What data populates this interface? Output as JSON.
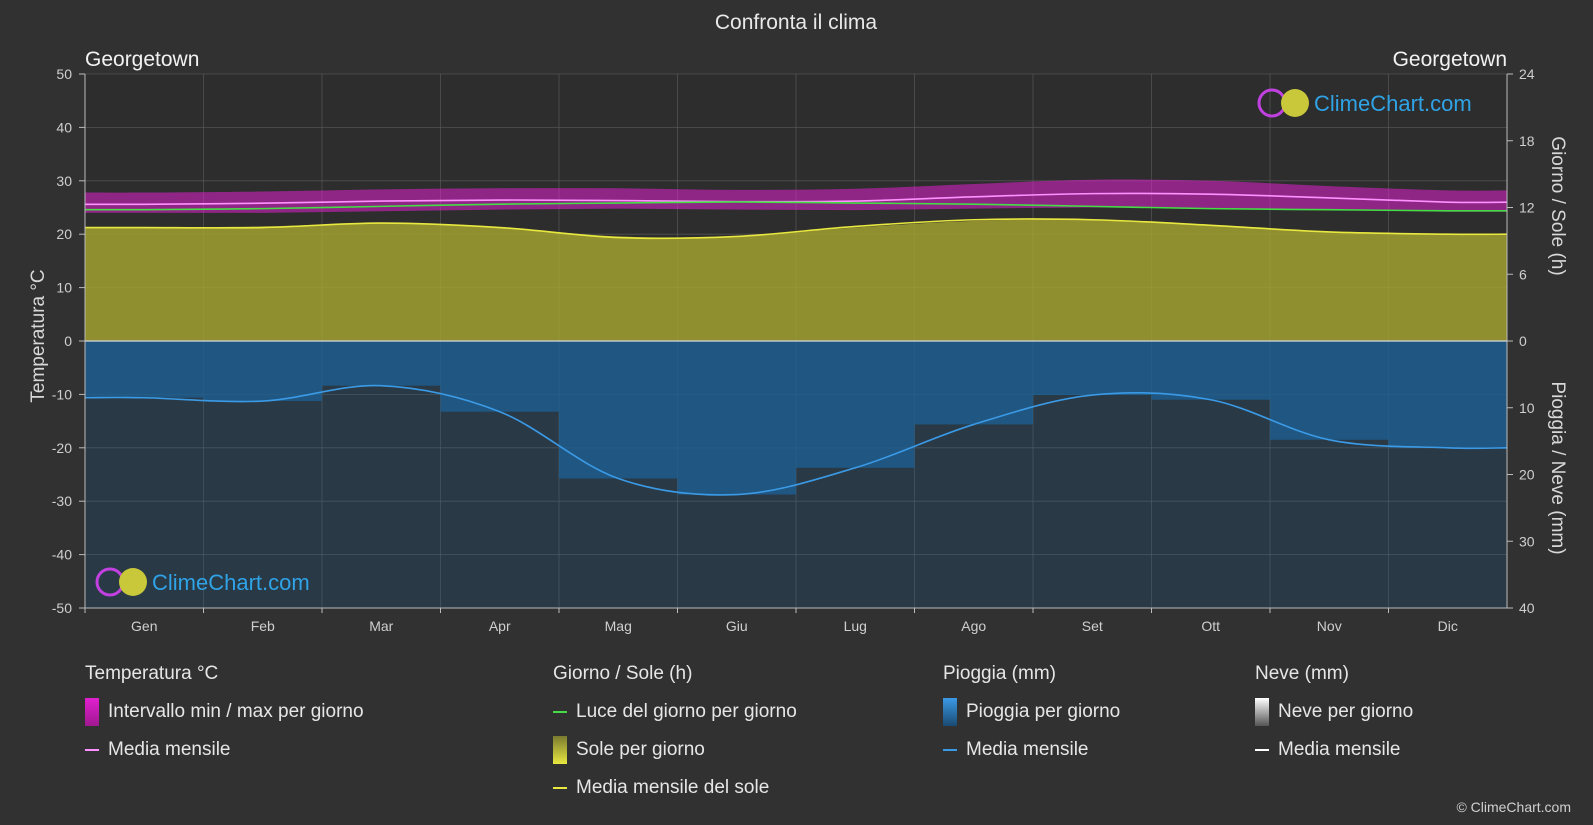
{
  "header": {
    "title": "Confronta il clima",
    "location_left": "Georgetown",
    "location_right": "Georgetown",
    "copyright": "© ClimeChart.com"
  },
  "brand": {
    "name": "ClimeChart.com"
  },
  "axes": {
    "left_title": "Temperatura °C",
    "right_top_title": "Giorno / Sole (h)",
    "right_bottom_title": "Pioggia / Neve (mm)"
  },
  "legend": {
    "temperature": {
      "heading": "Temperatura °C",
      "range_label": "Intervallo min / max per giorno",
      "mean_label": "Media mensile"
    },
    "sun": {
      "heading": "Giorno / Sole (h)",
      "daylight_label": "Luce del giorno per giorno",
      "sun_label": "Sole per giorno",
      "sun_mean_label": "Media mensile del sole"
    },
    "rain": {
      "heading": "Pioggia (mm)",
      "rain_label": "Pioggia per giorno",
      "mean_label": "Media mensile"
    },
    "snow": {
      "heading": "Neve (mm)",
      "snow_label": "Neve per giorno",
      "mean_label": "Media mensile"
    }
  },
  "colors": {
    "background": "#313131",
    "temp_range": "#e020d0",
    "temp_mean": "#ff90ff",
    "daylight": "#44dd44",
    "sun_fill": "#a8a830",
    "sun_mean": "#e8e840",
    "rain_fill": "#1f5f92",
    "rain_mean": "#3b9ae6",
    "snow_mean": "#ffffff",
    "grid": "#5a5a5a",
    "brand": "#2fa3e6"
  },
  "chart_data": {
    "type": "area",
    "x_categories": [
      "Gen",
      "Feb",
      "Mar",
      "Apr",
      "Mag",
      "Giu",
      "Lug",
      "Ago",
      "Set",
      "Ott",
      "Nov",
      "Dic"
    ],
    "left_axis": {
      "label": "Temperatura °C",
      "ylim": [
        -50,
        50
      ],
      "ticks": [
        50,
        40,
        30,
        20,
        10,
        0,
        -10,
        -20,
        -30,
        -40,
        -50
      ]
    },
    "right_axis_top": {
      "label": "Giorno / Sole (h)",
      "ylim": [
        0,
        24
      ],
      "ticks": [
        24,
        18,
        12,
        6,
        0
      ]
    },
    "right_axis_bottom": {
      "label": "Pioggia / Neve (mm)",
      "ylim": [
        0,
        40
      ],
      "ticks": [
        0,
        10,
        20,
        30,
        40
      ]
    },
    "series": [
      {
        "name": "Intervallo min / max per giorno",
        "axis": "left",
        "kind": "band",
        "min": [
          24.0,
          24.0,
          24.3,
          24.6,
          24.8,
          24.6,
          24.5,
          24.8,
          25.0,
          24.9,
          24.6,
          24.2
        ],
        "max": [
          27.8,
          28.0,
          28.4,
          28.6,
          28.6,
          28.3,
          28.5,
          29.4,
          30.2,
          30.0,
          29.0,
          28.2
        ]
      },
      {
        "name": "Media mensile",
        "axis": "left",
        "kind": "line",
        "values": [
          25.6,
          25.8,
          26.2,
          26.4,
          26.3,
          26.1,
          26.2,
          27.0,
          27.6,
          27.5,
          26.8,
          26.0
        ]
      },
      {
        "name": "Luce del giorno per giorno",
        "axis": "right_top",
        "kind": "line",
        "values": [
          11.8,
          11.9,
          12.1,
          12.3,
          12.4,
          12.5,
          12.4,
          12.3,
          12.1,
          11.9,
          11.8,
          11.7
        ]
      },
      {
        "name": "Sole per giorno",
        "axis": "right_top",
        "kind": "area",
        "values": [
          10.2,
          10.3,
          10.6,
          10.2,
          9.4,
          9.4,
          10.2,
          10.8,
          10.9,
          10.4,
          9.8,
          9.6
        ]
      },
      {
        "name": "Media mensile del sole",
        "axis": "right_top",
        "kind": "line",
        "values": [
          10.2,
          10.2,
          10.6,
          10.2,
          9.3,
          9.4,
          10.3,
          10.9,
          10.9,
          10.4,
          9.8,
          9.6
        ]
      },
      {
        "name": "Pioggia per giorno",
        "axis": "right_bottom",
        "kind": "bars",
        "values": [
          8.5,
          9.0,
          6.7,
          10.6,
          20.6,
          23.0,
          19.0,
          12.5,
          8.1,
          8.8,
          14.8,
          16.0
        ]
      },
      {
        "name": "Media mensile",
        "axis": "right_bottom",
        "kind": "line",
        "values": [
          8.5,
          9.0,
          6.7,
          10.6,
          20.6,
          23.0,
          19.0,
          12.5,
          8.1,
          8.8,
          14.8,
          16.0
        ]
      }
    ],
    "grid": true
  }
}
